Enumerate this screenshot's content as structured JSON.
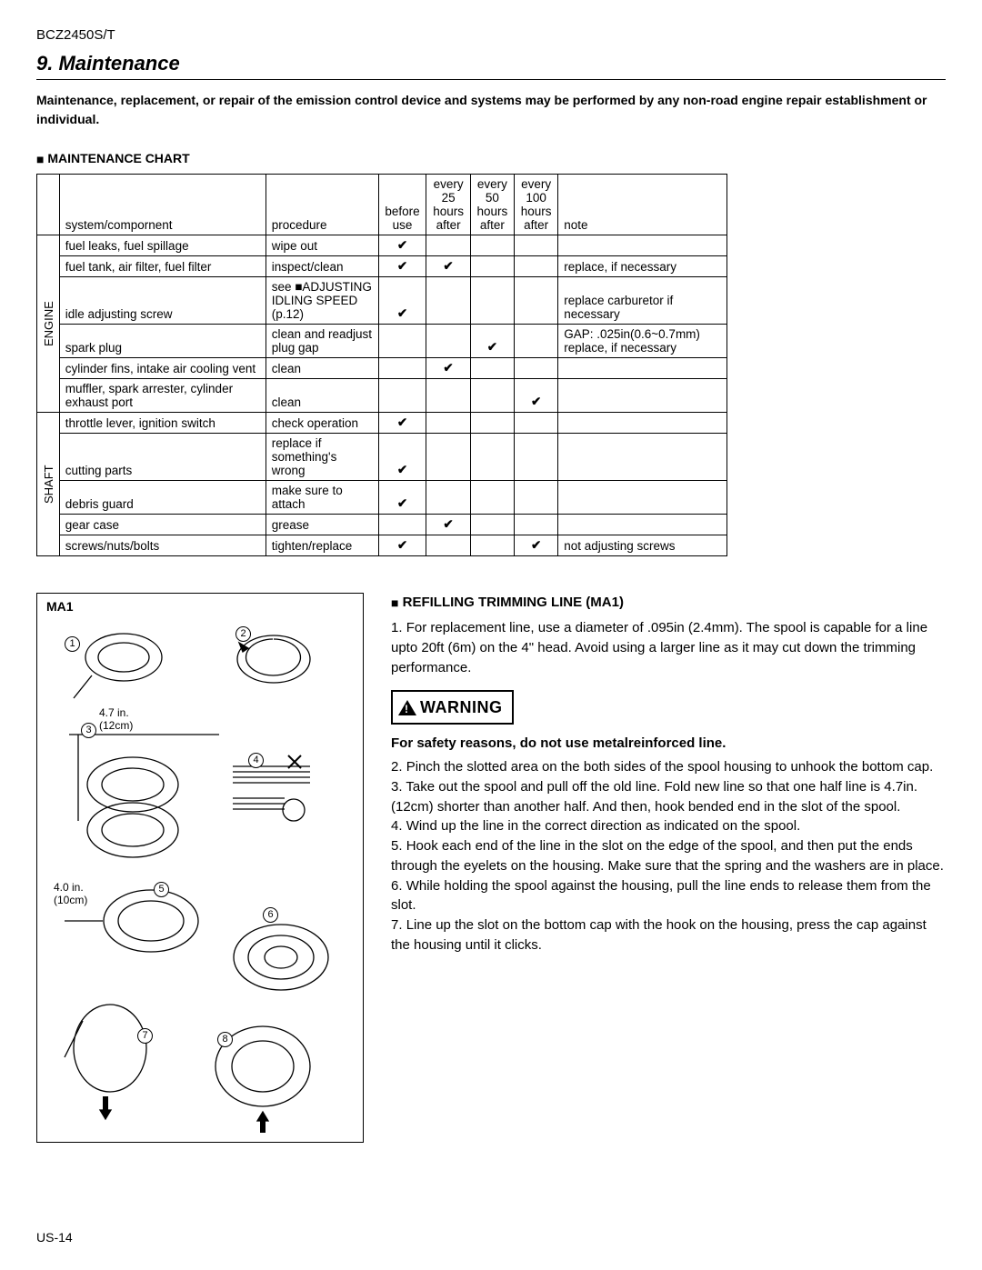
{
  "model": "BCZ2450S/T",
  "section_title": "9. Maintenance",
  "intro": "Maintenance, replacement, or repair of the emission control device and systems may be performed by any non-road engine repair establishment or individual.",
  "chart_label": "MAINTENANCE CHART",
  "table": {
    "headers": {
      "system": "system/compornent",
      "procedure": "procedure",
      "before": "before use",
      "h25": "every 25 hours after",
      "h50": "every 50 hours after",
      "h100": "every 100 hours after",
      "note": "note"
    },
    "group_labels": {
      "engine": "ENGINE",
      "shaft": "SHAFT"
    },
    "engine_rows": [
      {
        "sys": "fuel leaks, fuel spillage",
        "proc": "wipe out",
        "b": "✔",
        "h25": "",
        "h50": "",
        "h100": "",
        "note": ""
      },
      {
        "sys": "fuel tank, air filter, fuel filter",
        "proc": "inspect/clean",
        "b": "✔",
        "h25": "✔",
        "h50": "",
        "h100": "",
        "note": "replace, if necessary"
      },
      {
        "sys": "idle adjusting screw",
        "proc": "see ■ADJUSTING IDLING SPEED (p.12)",
        "b": "✔",
        "h25": "",
        "h50": "",
        "h100": "",
        "note": "replace carburetor if necessary"
      },
      {
        "sys": "spark plug",
        "proc": "clean and readjust plug gap",
        "b": "",
        "h25": "",
        "h50": "✔",
        "h100": "",
        "note": "GAP: .025in(0.6~0.7mm) replace, if necessary"
      },
      {
        "sys": "cylinder fins, intake air cooling vent",
        "proc": "clean",
        "b": "",
        "h25": "✔",
        "h50": "",
        "h100": "",
        "note": ""
      },
      {
        "sys": "muffler, spark arrester, cylinder exhaust port",
        "proc": "clean",
        "b": "",
        "h25": "",
        "h50": "",
        "h100": "✔",
        "note": ""
      }
    ],
    "shaft_rows": [
      {
        "sys": "throttle lever, ignition switch",
        "proc": "check operation",
        "b": "✔",
        "h25": "",
        "h50": "",
        "h100": "",
        "note": ""
      },
      {
        "sys": "cutting parts",
        "proc": "replace if something's wrong",
        "b": "✔",
        "h25": "",
        "h50": "",
        "h100": "",
        "note": ""
      },
      {
        "sys": "debris guard",
        "proc": "make sure to attach",
        "b": "✔",
        "h25": "",
        "h50": "",
        "h100": "",
        "note": ""
      },
      {
        "sys": "gear case",
        "proc": "grease",
        "b": "",
        "h25": "✔",
        "h50": "",
        "h100": "",
        "note": ""
      },
      {
        "sys": "screws/nuts/bolts",
        "proc": "tighten/replace",
        "b": "✔",
        "h25": "",
        "h50": "",
        "h100": "✔",
        "note": "not adjusting screws"
      }
    ]
  },
  "diagram": {
    "title": "MA1",
    "labels": {
      "l1": "4.7 in.",
      "l1b": "(12cm)",
      "l2": "4.0 in.",
      "l2b": "(10cm)"
    },
    "nums": [
      "①",
      "②",
      "③",
      "④",
      "⑤",
      "⑥",
      "⑦",
      "⑧"
    ]
  },
  "right": {
    "heading": "REFILLING TRIMMING LINE (MA1)",
    "step1": "For replacement line, use a diameter of .095in (2.4mm). The spool is capable for a line upto 20ft (6m) on the 4\" head. Avoid using a larger line as it may cut down the trimming performance.",
    "warning_label": "WARNING",
    "safety": "For safety reasons, do not use metalreinforced line.",
    "step2": "Pinch the slotted area on the both sides of the spool housing to unhook the bottom cap.",
    "step3": "Take out the spool and pull off the old line. Fold new line so that one half line is 4.7in.(12cm) shorter than another half. And then, hook bended end in the slot of the spool.",
    "step4": "Wind up the line in the correct direction as indicated on the spool.",
    "step5": "Hook each end of the line in the slot on the edge of the spool, and then put the ends through the eyelets on the housing. Make sure that the spring and the washers are in place.",
    "step6": "While holding the spool against the housing, pull the line ends to release them from the slot.",
    "step7": "Line up the slot on the bottom cap with the hook on the housing, press the cap against the housing until it clicks."
  },
  "page_no": "US-14"
}
